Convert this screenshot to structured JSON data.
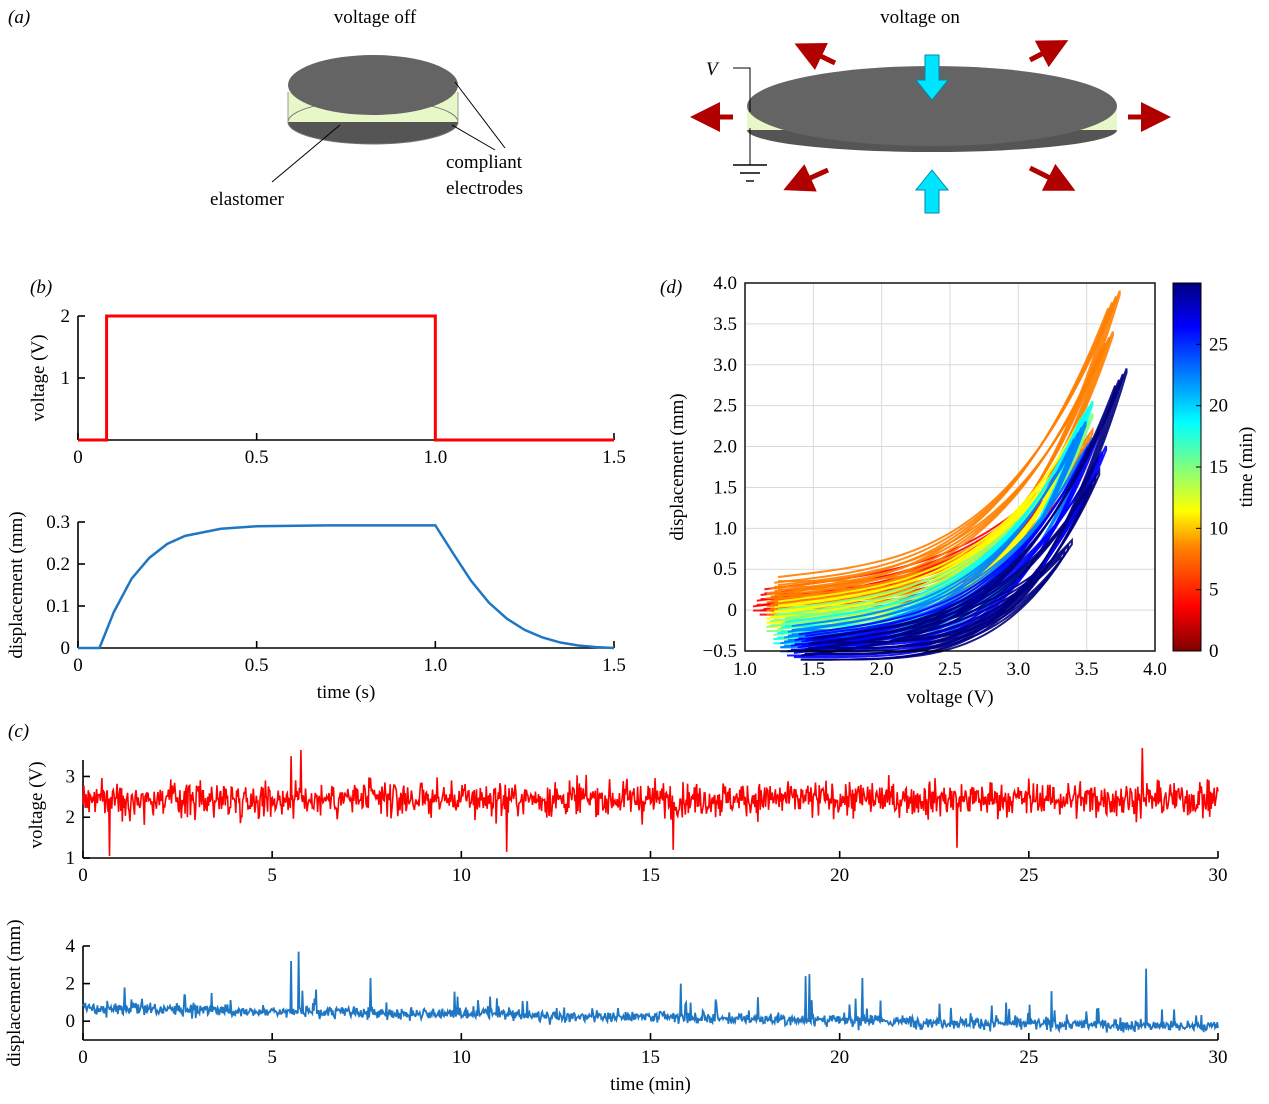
{
  "panels": {
    "a": "(a)",
    "b": "(b)",
    "c": "(c)",
    "d": "(d)"
  },
  "diagram": {
    "left_title": "voltage off",
    "right_title": "voltage on",
    "elastomer_label": "elastomer",
    "electrodes_label_1": "compliant",
    "electrodes_label_2": "electrodes",
    "voltage_symbol": "V",
    "colors": {
      "electrode": "#646464",
      "elastomer": "#e8f7c8",
      "arrow_red": "#b00000",
      "arrow_cyan": "#00e5ff"
    }
  },
  "chart_data": [
    {
      "id": "b-voltage",
      "type": "line",
      "ylabel": "voltage (V)",
      "xlabel": "",
      "xlim": [
        0,
        1.5
      ],
      "ylim": [
        0,
        2.0
      ],
      "xticks": [
        "0",
        "0.5",
        "1.0",
        "1.5"
      ],
      "yticks": [
        "1",
        "2"
      ],
      "series": [
        {
          "color": "#ff0000",
          "x": [
            0,
            0.08,
            0.08,
            1.0,
            1.0,
            1.5
          ],
          "y": [
            0,
            0,
            2,
            2,
            0,
            0
          ]
        }
      ]
    },
    {
      "id": "b-displacement",
      "type": "line",
      "ylabel": "displacement (mm)",
      "xlabel": "time (s)",
      "xlim": [
        0,
        1.5
      ],
      "ylim": [
        0,
        0.3
      ],
      "xticks": [
        "0",
        "0.5",
        "1.0",
        "1.5"
      ],
      "yticks": [
        "0",
        "0.1",
        "0.2",
        "0.3"
      ],
      "series": [
        {
          "color": "#1f77c4",
          "x": [
            0,
            0.06,
            0.1,
            0.15,
            0.2,
            0.25,
            0.3,
            0.4,
            0.5,
            0.7,
            1.0,
            1.05,
            1.1,
            1.15,
            1.2,
            1.25,
            1.3,
            1.35,
            1.4,
            1.45,
            1.5
          ],
          "y": [
            0,
            0,
            0.085,
            0.165,
            0.215,
            0.248,
            0.267,
            0.284,
            0.29,
            0.292,
            0.292,
            0.225,
            0.16,
            0.108,
            0.07,
            0.043,
            0.025,
            0.013,
            0.006,
            0.002,
            0.0
          ]
        }
      ]
    },
    {
      "id": "d-hysteresis",
      "type": "line",
      "xlabel": "voltage (V)",
      "ylabel": "displacement (mm)",
      "colorbar_label": "time (min)",
      "xlim": [
        1.0,
        4.0
      ],
      "ylim": [
        -0.5,
        4.0
      ],
      "xticks": [
        "1.0",
        "1.5",
        "2.0",
        "2.5",
        "3.0",
        "3.5",
        "4.0"
      ],
      "yticks": [
        "−0.5",
        "0",
        "0.5",
        "1.0",
        "1.5",
        "2.0",
        "2.5",
        "3.0",
        "3.5",
        "4.0"
      ],
      "colorbar_ticks": [
        "0",
        "5",
        "10",
        "15",
        "20",
        "25"
      ],
      "colorbar_range": [
        0,
        30
      ],
      "grid": true,
      "loops": [
        {
          "t": 1,
          "vmin": 1.1,
          "vmax": 3.4,
          "dmin": 0.15,
          "dmax": 1.9
        },
        {
          "t": 2,
          "vmin": 1.15,
          "vmax": 3.45,
          "dmin": 0.1,
          "dmax": 1.8
        },
        {
          "t": 4,
          "vmin": 1.2,
          "vmax": 3.7,
          "dmin": 0.3,
          "dmax": 3.8
        },
        {
          "t": 5,
          "vmin": 1.2,
          "vmax": 3.65,
          "dmin": 0.2,
          "dmax": 3.3
        },
        {
          "t": 7,
          "vmin": 1.2,
          "vmax": 3.5,
          "dmin": 0.1,
          "dmax": 2.1
        },
        {
          "t": 9,
          "vmin": 1.2,
          "vmax": 3.5,
          "dmin": 0.0,
          "dmax": 2.45
        },
        {
          "t": 11,
          "vmin": 1.2,
          "vmax": 3.45,
          "dmin": -0.05,
          "dmax": 2.2
        },
        {
          "t": 13,
          "vmin": 1.2,
          "vmax": 3.45,
          "dmin": -0.1,
          "dmax": 2.1
        },
        {
          "t": 15,
          "vmin": 1.25,
          "vmax": 3.5,
          "dmin": -0.2,
          "dmax": 2.3
        },
        {
          "t": 17,
          "vmin": 1.25,
          "vmax": 3.5,
          "dmin": -0.25,
          "dmax": 2.45
        },
        {
          "t": 19,
          "vmin": 1.3,
          "vmax": 3.45,
          "dmin": -0.3,
          "dmax": 2.2
        },
        {
          "t": 21,
          "vmin": 1.3,
          "vmax": 3.5,
          "dmin": -0.35,
          "dmax": 2.0
        },
        {
          "t": 23,
          "vmin": 1.35,
          "vmax": 3.55,
          "dmin": -0.4,
          "dmax": 2.1
        },
        {
          "t": 25,
          "vmin": 1.4,
          "vmax": 3.6,
          "dmin": -0.42,
          "dmax": 1.9
        },
        {
          "t": 27,
          "vmin": 1.45,
          "vmax": 3.55,
          "dmin": -0.45,
          "dmax": 1.6
        },
        {
          "t": 28,
          "vmin": 1.45,
          "vmax": 3.75,
          "dmin": -0.45,
          "dmax": 2.85
        },
        {
          "t": 29,
          "vmin": 1.5,
          "vmax": 3.35,
          "dmin": -0.45,
          "dmax": 0.75
        }
      ]
    },
    {
      "id": "c-voltage",
      "type": "line",
      "ylabel": "voltage (V)",
      "xlabel": "",
      "xlim": [
        0,
        30
      ],
      "ylim": [
        1,
        3.6
      ],
      "xticks": [
        "0",
        "5",
        "10",
        "15",
        "20",
        "25",
        "30"
      ],
      "yticks": [
        "1",
        "2",
        "3"
      ],
      "series": [
        {
          "color": "#ff0000",
          "mean": 2.45,
          "spread": 0.55,
          "n": 1500,
          "spikes": [
            [
              5.5,
              3.5
            ],
            [
              5.75,
              3.65
            ],
            [
              28.0,
              3.7
            ],
            [
              0.7,
              1.05
            ],
            [
              11.2,
              1.15
            ],
            [
              15.6,
              1.2
            ],
            [
              23.1,
              1.25
            ]
          ]
        }
      ]
    },
    {
      "id": "c-displacement",
      "type": "line",
      "ylabel": "displacement (mm)",
      "xlabel": "time (min)",
      "xlim": [
        0,
        30
      ],
      "ylim": [
        -1,
        4
      ],
      "xticks": [
        "0",
        "5",
        "10",
        "15",
        "20",
        "25",
        "30"
      ],
      "yticks": [
        "0",
        "2",
        "4"
      ],
      "series": [
        {
          "color": "#1f77c4",
          "start_mean": 0.7,
          "end_mean": -0.3,
          "n": 1500,
          "spikes": [
            [
              5.5,
              3.2
            ],
            [
              5.7,
              3.7
            ],
            [
              7.6,
              2.3
            ],
            [
              15.8,
              2.0
            ],
            [
              19.1,
              2.4
            ],
            [
              19.2,
              2.5
            ],
            [
              20.6,
              2.3
            ],
            [
              25.6,
              1.6
            ],
            [
              28.1,
              2.8
            ],
            [
              1.1,
              1.8
            ],
            [
              3.4,
              1.5
            ]
          ]
        }
      ]
    }
  ]
}
